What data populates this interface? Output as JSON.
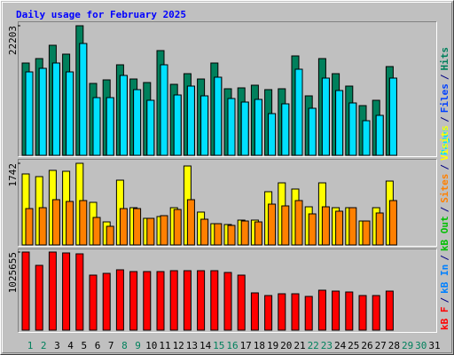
{
  "title": "Daily usage for February 2025",
  "separator": "/",
  "x_labels": [
    "1",
    "2",
    "3",
    "4",
    "5",
    "6",
    "7",
    "8",
    "9",
    "10",
    "11",
    "12",
    "13",
    "14",
    "15",
    "16",
    "17",
    "18",
    "19",
    "20",
    "21",
    "22",
    "23",
    "24",
    "25",
    "26",
    "27",
    "28",
    "29",
    "30",
    "31"
  ],
  "weekend_days": [
    1,
    2,
    8,
    9,
    15,
    16,
    22,
    23,
    29,
    30
  ],
  "weekend_color": "#00805c",
  "chart_data": [
    {
      "type": "bar",
      "ylim": [
        0,
        22203
      ],
      "yticks": [
        22203
      ],
      "series": [
        {
          "name": "Hits",
          "color": "#00805c",
          "values": [
            15816,
            16576,
            18857,
            17337,
            22203,
            12318,
            12926,
            15512,
            13078,
            12470,
            17945,
            12166,
            13991,
            13078,
            15816,
            11406,
            11558,
            12014,
            11254,
            11406,
            17032,
            10189,
            16576,
            13991,
            11862,
            8516,
            9429,
            15208,
            null,
            null,
            null
          ]
        },
        {
          "name": "Files",
          "color": "#0040ff",
          "values": [
            14295,
            14904,
            15816,
            14295,
            19162,
            9885,
            9885,
            13687,
            11254,
            9429,
            15512,
            10341,
            11862,
            10189,
            13383,
            9733,
            9125,
            9581,
            7148,
            8821,
            14752,
            8060,
            13231,
            11102,
            8973,
            5931,
            6844,
            13231,
            null,
            null,
            null
          ]
        },
        {
          "name": "Pages",
          "color": "#00e0ff",
          "values": [
            14295,
            14904,
            15816,
            14295,
            19162,
            9885,
            9885,
            13687,
            11254,
            9429,
            15512,
            10341,
            11862,
            10189,
            13383,
            9733,
            9125,
            9581,
            7148,
            8821,
            14752,
            8060,
            13231,
            11102,
            8973,
            5931,
            6844,
            13231,
            null,
            null,
            null
          ]
        }
      ]
    },
    {
      "type": "bar",
      "ylim": [
        0,
        1742
      ],
      "yticks": [
        1742
      ],
      "series": [
        {
          "name": "Visits",
          "color": "#ffff00",
          "values": [
            1515,
            1458,
            1591,
            1572,
            1742,
            909,
            492,
            1382,
            795,
            568,
            606,
            795,
            1685,
            701,
            454,
            436,
            530,
            530,
            1136,
            1325,
            1193,
            814,
            1325,
            795,
            795,
            511,
            795,
            1363,
            null,
            null,
            null
          ]
        },
        {
          "name": "Sites",
          "color": "#ff8000",
          "values": [
            776,
            795,
            966,
            928,
            947,
            587,
            398,
            776,
            776,
            568,
            625,
            757,
            966,
            549,
            454,
            417,
            511,
            492,
            871,
            833,
            947,
            663,
            814,
            720,
            795,
            511,
            682,
            947,
            null,
            null,
            null
          ]
        }
      ]
    },
    {
      "type": "bar",
      "ylim": [
        0,
        1025655
      ],
      "yticks": [
        1025655
      ],
      "series": [
        {
          "name": "kB F",
          "color": "#ff0000",
          "values": [
            1025655,
            850830,
            1025655,
            1014002,
            1002347,
            722622,
            745933,
            792554,
            769243,
            769243,
            769243,
            780898,
            780898,
            780898,
            780898,
            757588,
            722622,
            489518,
            454553,
            477863,
            477863,
            442898,
            524484,
            512829,
            501174,
            454553,
            454553,
            512829,
            null,
            null,
            null
          ]
        },
        {
          "name": "kB In",
          "color": "#0080ff"
        },
        {
          "name": "kB Out",
          "color": "#00c000"
        }
      ]
    }
  ]
}
